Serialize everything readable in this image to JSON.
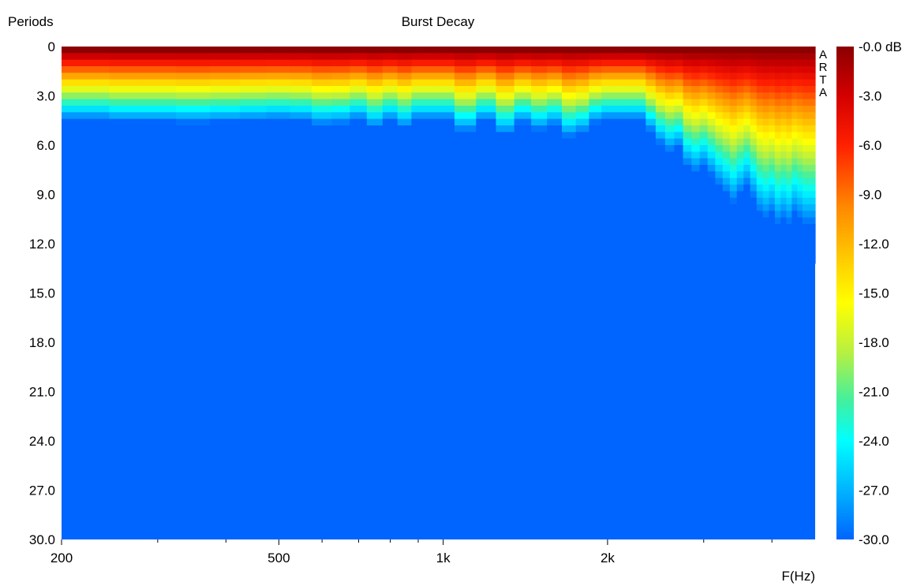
{
  "chart_data": {
    "type": "heatmap",
    "title": "Burst Decay",
    "ylabel": "Periods",
    "xlabel": "F(Hz)",
    "x_scale": "log",
    "xlim": [
      200,
      4800
    ],
    "ylim": [
      0,
      30
    ],
    "y_inverted": true,
    "x_ticks": [
      {
        "value": 200,
        "label": "200"
      },
      {
        "value": 500,
        "label": "500"
      },
      {
        "value": 1000,
        "label": "1k"
      },
      {
        "value": 2000,
        "label": "2k"
      }
    ],
    "y_ticks": [
      "0",
      "3.0",
      "6.0",
      "9.0",
      "12.0",
      "15.0",
      "18.0",
      "21.0",
      "24.0",
      "27.0",
      "30.0"
    ],
    "colorbar": {
      "range": [
        -30,
        0
      ],
      "unit": "dB",
      "labels": [
        "-0.0 dB",
        "-3.0",
        "-6.0",
        "-9.0",
        "-12.0",
        "-15.0",
        "-18.0",
        "-21.0",
        "-24.0",
        "-27.0",
        "-30.0"
      ]
    },
    "floor_db": -30,
    "grid": false,
    "watermark": "ARTA",
    "decay_profile": {
      "description_units": "frequency Hz, periods at which level falls to floor (-30 dB)",
      "freq_hz": [
        200,
        230,
        260,
        300,
        350,
        400,
        450,
        500,
        550,
        600,
        650,
        700,
        750,
        800,
        850,
        900,
        950,
        1000,
        1100,
        1200,
        1300,
        1400,
        1500,
        1600,
        1700,
        1800,
        1900,
        2000,
        2100,
        2200,
        2300,
        2400,
        2500,
        2600,
        2700,
        2800,
        2900,
        3000,
        3100,
        3200,
        3300,
        3400,
        3500,
        3600,
        3700,
        3800,
        3900,
        4000,
        4100,
        4200,
        4300,
        4400,
        4500,
        4600,
        4700
      ],
      "end_periods": [
        5.5,
        5.4,
        5.3,
        5.4,
        5.6,
        5.4,
        5.2,
        5.0,
        5.2,
        5.6,
        5.6,
        5.0,
        5.8,
        5.2,
        5.8,
        5.0,
        5.0,
        5.0,
        6.2,
        5.2,
        6.4,
        5.4,
        6.0,
        5.6,
        6.6,
        6.2,
        5.4,
        5.0,
        5.0,
        5.0,
        5.0,
        6.0,
        7.8,
        8.6,
        8.0,
        9.8,
        10.4,
        11.0,
        11.6,
        12.2,
        12.5,
        13.1,
        12.6,
        11.8,
        12.4,
        12.8,
        13.0,
        12.4,
        13.2,
        12.8,
        13.2,
        12.6,
        13.0,
        13.2,
        13.2
      ],
      "decay_rate_db_per_period": [
        7.0,
        7.0,
        6.8,
        6.8,
        6.7,
        6.8,
        6.9,
        7.0,
        6.9,
        6.5,
        6.6,
        7.0,
        6.3,
        6.9,
        6.3,
        7.0,
        7.0,
        7.0,
        6.0,
        6.9,
        5.8,
        6.7,
        6.1,
        6.5,
        5.6,
        5.9,
        6.7,
        7.0,
        7.0,
        7.0,
        7.0,
        6.0,
        5.2,
        4.8,
        5.0,
        4.2,
        4.0,
        4.2,
        3.9,
        3.6,
        3.4,
        3.2,
        3.4,
        3.6,
        3.3,
        3.0,
        2.9,
        3.0,
        2.8,
        2.9,
        2.8,
        3.0,
        2.9,
        2.8,
        2.8
      ]
    }
  }
}
